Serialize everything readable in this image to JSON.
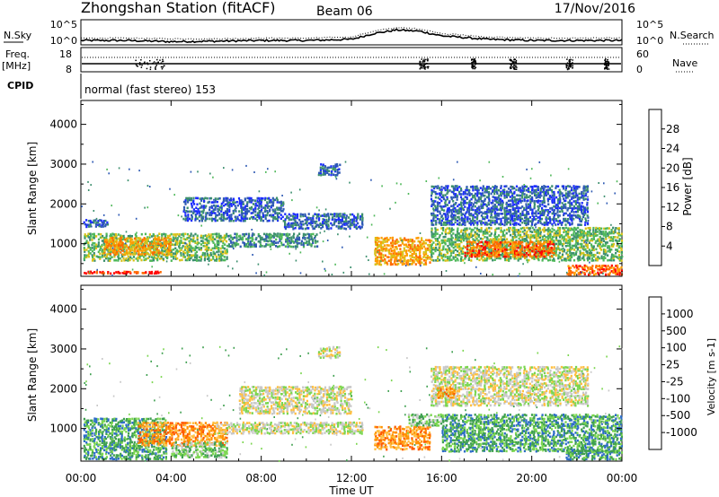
{
  "header": {
    "station": "Zhongshan Station (fitACF)",
    "beam": "Beam 06",
    "date": "17/Nov/2016"
  },
  "colors": {
    "power_scale": [
      "#1c2cff",
      "#2f5ab4",
      "#3c8f6e",
      "#4fb85a",
      "#d7c21a",
      "#ff9c00",
      "#ff6a00",
      "#ff0000"
    ],
    "velocity_scale": [
      "#ff0000",
      "#ff5a00",
      "#ff9000",
      "#ffbf40",
      "#c8c8c8",
      "#7bd64f",
      "#3fa050",
      "#2c6cc8",
      "#1c2cff"
    ],
    "ground_scatter": "#c8c8c8"
  },
  "chart_data": [
    {
      "type": "line",
      "name": "noise-panel",
      "left_label": "N.Sky",
      "right_label": "N.Search",
      "left_ticks": [
        "10^5",
        "10^0"
      ],
      "right_ticks": [
        "10^5",
        "10^0"
      ],
      "right_style": "dotted",
      "x": [
        0,
        2,
        4,
        6,
        8,
        10,
        12,
        13,
        14,
        15,
        16,
        18,
        20,
        22,
        24
      ],
      "series": [
        {
          "name": "N.Sky",
          "values": [
            0.15,
            0.15,
            0.1,
            0.12,
            0.15,
            0.15,
            0.2,
            0.45,
            0.6,
            0.55,
            0.35,
            0.2,
            0.15,
            0.15,
            0.15
          ]
        },
        {
          "name": "N.Search",
          "values": [
            0.25,
            0.25,
            0.22,
            0.22,
            0.25,
            0.25,
            0.3,
            0.55,
            0.7,
            0.65,
            0.45,
            0.3,
            0.25,
            0.25,
            0.25
          ]
        }
      ]
    },
    {
      "type": "line",
      "name": "frequency-panel",
      "left_label": "Freq.",
      "left_unit": "[MHz]",
      "left_ticks": [
        "18",
        "8"
      ],
      "right_label": "Nave",
      "right_ticks": [
        "60",
        "0"
      ],
      "right_style": "dotted",
      "freq_mhz": 10,
      "nave_dotted_level": 40
    },
    {
      "type": "text",
      "name": "cpid-panel",
      "label": "CPID",
      "value": "normal (fast stereo) 153"
    },
    {
      "type": "heatmap",
      "name": "power-panel",
      "ylabel": "Slant Range [km]",
      "yticks": [
        1000,
        2000,
        3000,
        4000
      ],
      "ylim": [
        180,
        4600
      ],
      "xlim": [
        0,
        24
      ],
      "colorbar_label": "Power [dB]",
      "colorbar_ticks": [
        "4",
        "8",
        "12",
        "16",
        "20",
        "24",
        "28"
      ],
      "bands": [
        {
          "t0": 0.1,
          "t1": 3.8,
          "r0": 280,
          "r1": 340,
          "level": 7
        },
        {
          "t0": 0.1,
          "t1": 6.5,
          "r0": 600,
          "r1": 1300,
          "level": 3
        },
        {
          "t0": 1.0,
          "t1": 4.0,
          "r0": 750,
          "r1": 1200,
          "level": 5
        },
        {
          "t0": 0.1,
          "t1": 1.2,
          "r0": 1450,
          "r1": 1650,
          "level": 1
        },
        {
          "t0": 4.5,
          "t1": 9.0,
          "r0": 1600,
          "r1": 2200,
          "level": 1
        },
        {
          "t0": 6.5,
          "t1": 10.5,
          "r0": 950,
          "r1": 1300,
          "level": 2
        },
        {
          "t0": 9.0,
          "t1": 12.5,
          "r0": 1400,
          "r1": 1800,
          "level": 1
        },
        {
          "t0": 10.5,
          "t1": 11.5,
          "r0": 2750,
          "r1": 3050,
          "level": 1
        },
        {
          "t0": 13.0,
          "t1": 15.5,
          "r0": 500,
          "r1": 1200,
          "level": 5
        },
        {
          "t0": 15.5,
          "t1": 24.0,
          "r0": 600,
          "r1": 1450,
          "level": 3
        },
        {
          "t0": 17.0,
          "t1": 21.0,
          "r0": 700,
          "r1": 1100,
          "level": 6
        },
        {
          "t0": 15.5,
          "t1": 22.5,
          "r0": 1500,
          "r1": 2500,
          "level": 1
        },
        {
          "t0": 21.5,
          "t1": 24.0,
          "r0": 250,
          "r1": 500,
          "level": 6
        }
      ]
    },
    {
      "type": "heatmap",
      "name": "velocity-panel",
      "ylabel": "Slant Range [km]",
      "yticks": [
        1000,
        2000,
        3000,
        4000
      ],
      "ylim": [
        180,
        4600
      ],
      "xlim": [
        0,
        24
      ],
      "xlabel": "Time UT",
      "xticks": [
        "00:00",
        "04:00",
        "08:00",
        "12:00",
        "16:00",
        "20:00",
        "00:00"
      ],
      "colorbar_label": "Velocity [m s-1]",
      "colorbar_ticks": [
        "-1000",
        "-500",
        "-100",
        "-25",
        "25",
        "100",
        "500",
        "1000"
      ],
      "bands": [
        {
          "t0": 0.1,
          "t1": 3.8,
          "r0": 250,
          "r1": 1300,
          "level": 6
        },
        {
          "t0": 2.5,
          "t1": 6.5,
          "r0": 600,
          "r1": 1200,
          "level": 2
        },
        {
          "t0": 4.0,
          "t1": 6.5,
          "r0": 300,
          "r1": 700,
          "level": 5
        },
        {
          "t0": 6.0,
          "t1": 12.5,
          "r0": 900,
          "r1": 1200,
          "level": 4
        },
        {
          "t0": 7.0,
          "t1": 12.0,
          "r0": 1400,
          "r1": 2100,
          "level": 4
        },
        {
          "t0": 10.5,
          "t1": 11.5,
          "r0": 2800,
          "r1": 3100,
          "level": 4
        },
        {
          "t0": 13.0,
          "t1": 15.5,
          "r0": 500,
          "r1": 1100,
          "level": 2
        },
        {
          "t0": 14.5,
          "t1": 16.0,
          "r0": 1100,
          "r1": 1400,
          "level": 5
        },
        {
          "t0": 16.0,
          "t1": 24.0,
          "r0": 450,
          "r1": 1400,
          "level": 6
        },
        {
          "t0": 15.5,
          "t1": 22.5,
          "r0": 1600,
          "r1": 2600,
          "level": 4
        },
        {
          "t0": 15.8,
          "t1": 16.6,
          "r0": 1800,
          "r1": 2100,
          "level": 2
        },
        {
          "t0": 21.5,
          "t1": 24.0,
          "r0": 250,
          "r1": 500,
          "level": 6
        }
      ]
    }
  ]
}
